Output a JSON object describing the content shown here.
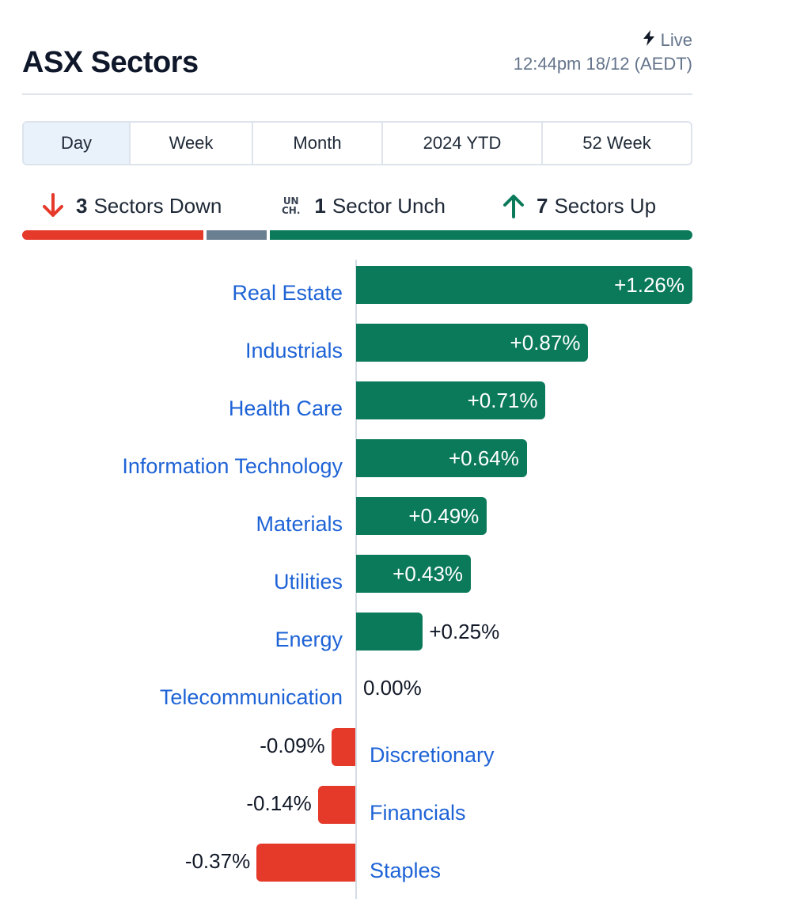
{
  "header": {
    "title": "ASX Sectors",
    "live_label": "Live",
    "timestamp": "12:44pm 18/12 (AEDT)"
  },
  "tabs": [
    {
      "label": "Day",
      "active": true
    },
    {
      "label": "Week",
      "active": false
    },
    {
      "label": "Month",
      "active": false
    },
    {
      "label": "2024 YTD",
      "active": false
    },
    {
      "label": "52 Week",
      "active": false
    }
  ],
  "summary": {
    "down_count": "3",
    "down_text": "Sectors Down",
    "unch_icon_line1": "UN",
    "unch_icon_line2": "CH.",
    "unch_count": "1",
    "unch_text": "Sector Unch",
    "up_count": "7",
    "up_text": "Sectors Up",
    "counts": {
      "down": 3,
      "unch": 1,
      "up": 7
    }
  },
  "colors": {
    "up": "#0b7a5a",
    "down": "#e5392a",
    "unch": "#6b7f92",
    "label": "#1e63d6",
    "active_tab_bg": "#e9f1fb"
  },
  "icons": {
    "live": "lightning-icon",
    "down": "arrow-down-icon",
    "up": "arrow-up-icon",
    "unch": "unchanged-icon"
  },
  "chart_data": {
    "type": "bar",
    "orientation": "horizontal",
    "categories": [
      "Real Estate",
      "Industrials",
      "Health Care",
      "Information Technology",
      "Materials",
      "Utilities",
      "Energy",
      "Telecommunication",
      "Discretionary",
      "Financials",
      "Staples"
    ],
    "values": [
      1.26,
      0.87,
      0.71,
      0.64,
      0.49,
      0.43,
      0.25,
      0.0,
      -0.09,
      -0.14,
      -0.37
    ],
    "value_labels": [
      "+1.26%",
      "+0.87%",
      "+0.71%",
      "+0.64%",
      "+0.49%",
      "+0.43%",
      "+0.25%",
      "0.00%",
      "-0.09%",
      "-0.14%",
      "-0.37%"
    ],
    "unit": "%",
    "grid": false,
    "legend": "none"
  }
}
